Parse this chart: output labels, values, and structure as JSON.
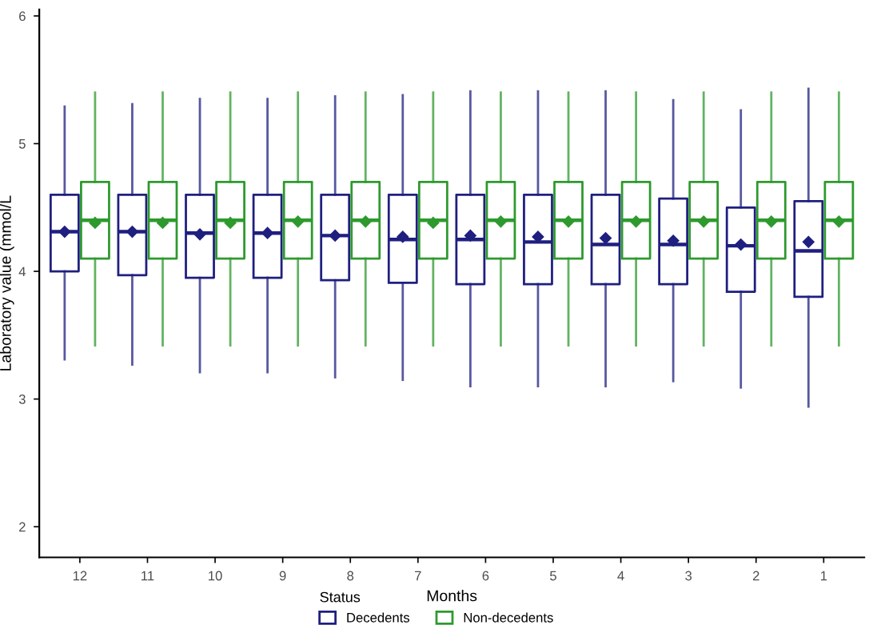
{
  "chart_data": {
    "type": "box",
    "xlabel": "Months",
    "ylabel": "Laboratory value (mmol/L",
    "legend_title": "Status",
    "legend": "bottom",
    "grid": false,
    "categories": [
      "12",
      "11",
      "10",
      "9",
      "8",
      "7",
      "6",
      "5",
      "4",
      "3",
      "2",
      "1"
    ],
    "ylim": [
      1.76,
      6.05
    ],
    "yticks": [
      2,
      3,
      4,
      5,
      6
    ],
    "series": [
      {
        "name": "Decedents",
        "color": "#1f1f80",
        "boxes": [
          {
            "low": 3.31,
            "q1": 4.0,
            "median": 4.31,
            "q3": 4.6,
            "high": 5.29,
            "mean": 4.31
          },
          {
            "low": 3.27,
            "q1": 3.97,
            "median": 4.31,
            "q3": 4.6,
            "high": 5.31,
            "mean": 4.31
          },
          {
            "low": 3.21,
            "q1": 3.95,
            "median": 4.3,
            "q3": 4.6,
            "high": 5.35,
            "mean": 4.29
          },
          {
            "low": 3.21,
            "q1": 3.95,
            "median": 4.3,
            "q3": 4.6,
            "high": 5.35,
            "mean": 4.3
          },
          {
            "low": 3.17,
            "q1": 3.93,
            "median": 4.28,
            "q3": 4.6,
            "high": 5.37,
            "mean": 4.28
          },
          {
            "low": 3.15,
            "q1": 3.91,
            "median": 4.25,
            "q3": 4.6,
            "high": 5.38,
            "mean": 4.27
          },
          {
            "low": 3.1,
            "q1": 3.9,
            "median": 4.25,
            "q3": 4.6,
            "high": 5.41,
            "mean": 4.28
          },
          {
            "low": 3.1,
            "q1": 3.9,
            "median": 4.23,
            "q3": 4.6,
            "high": 5.41,
            "mean": 4.27
          },
          {
            "low": 3.1,
            "q1": 3.9,
            "median": 4.21,
            "q3": 4.6,
            "high": 5.41,
            "mean": 4.26
          },
          {
            "low": 3.14,
            "q1": 3.9,
            "median": 4.21,
            "q3": 4.57,
            "high": 5.34,
            "mean": 4.24
          },
          {
            "low": 3.09,
            "q1": 3.84,
            "median": 4.2,
            "q3": 4.5,
            "high": 5.26,
            "mean": 4.21
          },
          {
            "low": 2.94,
            "q1": 3.8,
            "median": 4.16,
            "q3": 4.55,
            "high": 5.43,
            "mean": 4.23
          }
        ]
      },
      {
        "name": "Non-decedents",
        "color": "#2e9a2e",
        "boxes": [
          {
            "low": 3.42,
            "q1": 4.1,
            "median": 4.4,
            "q3": 4.7,
            "high": 5.4,
            "mean": 4.38
          },
          {
            "low": 3.42,
            "q1": 4.1,
            "median": 4.4,
            "q3": 4.7,
            "high": 5.4,
            "mean": 4.38
          },
          {
            "low": 3.42,
            "q1": 4.1,
            "median": 4.4,
            "q3": 4.7,
            "high": 5.4,
            "mean": 4.38
          },
          {
            "low": 3.42,
            "q1": 4.1,
            "median": 4.4,
            "q3": 4.7,
            "high": 5.4,
            "mean": 4.39
          },
          {
            "low": 3.42,
            "q1": 4.1,
            "median": 4.4,
            "q3": 4.7,
            "high": 5.4,
            "mean": 4.39
          },
          {
            "low": 3.42,
            "q1": 4.1,
            "median": 4.4,
            "q3": 4.7,
            "high": 5.4,
            "mean": 4.38
          },
          {
            "low": 3.42,
            "q1": 4.1,
            "median": 4.4,
            "q3": 4.7,
            "high": 5.4,
            "mean": 4.39
          },
          {
            "low": 3.42,
            "q1": 4.1,
            "median": 4.4,
            "q3": 4.7,
            "high": 5.4,
            "mean": 4.39
          },
          {
            "low": 3.42,
            "q1": 4.1,
            "median": 4.4,
            "q3": 4.7,
            "high": 5.4,
            "mean": 4.39
          },
          {
            "low": 3.42,
            "q1": 4.1,
            "median": 4.4,
            "q3": 4.7,
            "high": 5.4,
            "mean": 4.39
          },
          {
            "low": 3.42,
            "q1": 4.1,
            "median": 4.4,
            "q3": 4.7,
            "high": 5.4,
            "mean": 4.39
          },
          {
            "low": 3.42,
            "q1": 4.1,
            "median": 4.4,
            "q3": 4.7,
            "high": 5.4,
            "mean": 4.39
          }
        ]
      }
    ]
  }
}
